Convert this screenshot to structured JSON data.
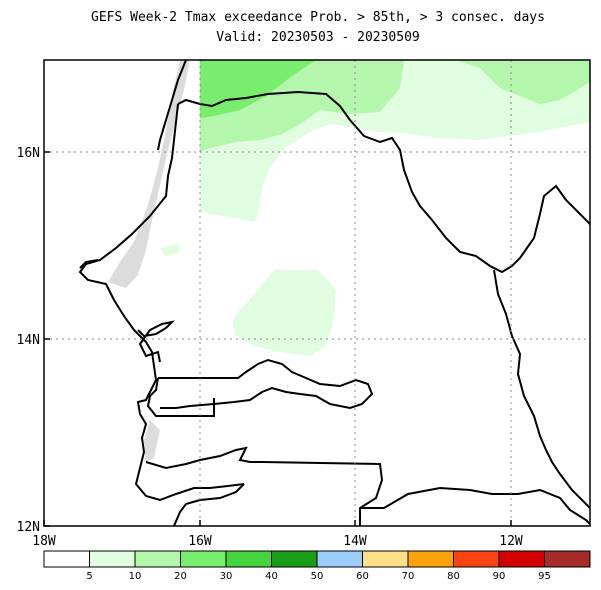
{
  "title": {
    "line1": "GEFS Week-2 Tmax exceedance Prob. > 85th, > 3 consec. days",
    "line2": "Valid: 20230503 - 20230509"
  },
  "axes": {
    "lat_labels": [
      "16N",
      "14N",
      "12N"
    ],
    "lon_labels": [
      "18W",
      "16W",
      "14W",
      "12W"
    ]
  },
  "colorbar": {
    "tick_labels": [
      "5",
      "10",
      "20",
      "30",
      "40",
      "50",
      "60",
      "70",
      "80",
      "90",
      "95"
    ],
    "colors": [
      "#ffffff",
      "#e1fde0",
      "#b3f6ac",
      "#79ed6e",
      "#45d43e",
      "#1a9e1a",
      "#9ccdfa",
      "#fee08a",
      "#fca20c",
      "#fa4414",
      "#d20000",
      "#a52a2a"
    ]
  },
  "map": {
    "region": "Senegal / The Gambia",
    "lat_range": [
      12,
      17
    ],
    "lon_range": [
      -18,
      -11
    ],
    "fill_colors": {
      "5_10": "#e1fde0",
      "10_20": "#b3f6ac",
      "20_30": "#79ed6e",
      "dry_coast": "#dcdcdc"
    }
  }
}
